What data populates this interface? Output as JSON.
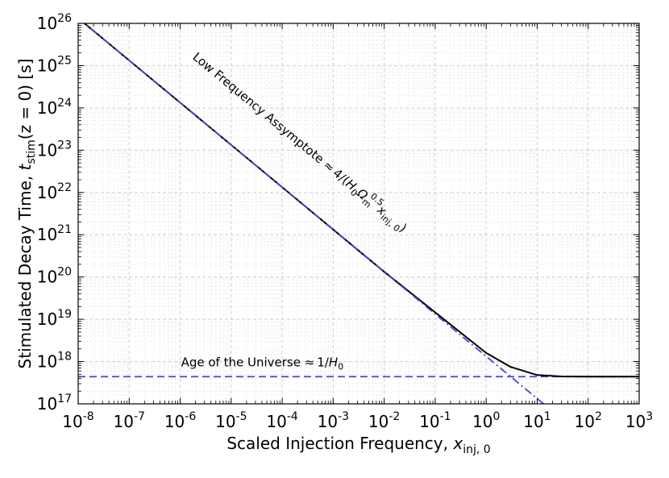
{
  "chart_data": {
    "type": "line",
    "scale": {
      "x": "log",
      "y": "log"
    },
    "xlim": [
      1e-08,
      1000
    ],
    "ylim": [
      1e+17,
      1e+26
    ],
    "grid": true,
    "xlabel_main": "Scaled Injection Frequency, ",
    "xlabel_var": "x",
    "xlabel_sub": "inj, 0",
    "ylabel_main": "Stimulated Decay Time, ",
    "ylabel_var": "t",
    "ylabel_sub": "stim",
    "ylabel_tail": "(z = 0) [s]",
    "x_ticks": [
      {
        "base": "10",
        "exp": "-8",
        "value": 1e-08
      },
      {
        "base": "10",
        "exp": "-7",
        "value": 1e-07
      },
      {
        "base": "10",
        "exp": "-6",
        "value": 1e-06
      },
      {
        "base": "10",
        "exp": "-5",
        "value": 1e-05
      },
      {
        "base": "10",
        "exp": "-4",
        "value": 0.0001
      },
      {
        "base": "10",
        "exp": "-3",
        "value": 0.001
      },
      {
        "base": "10",
        "exp": "-2",
        "value": 0.01
      },
      {
        "base": "10",
        "exp": "-1",
        "value": 0.1
      },
      {
        "base": "10",
        "exp": "0",
        "value": 1
      },
      {
        "base": "10",
        "exp": "1",
        "value": 10
      },
      {
        "base": "10",
        "exp": "2",
        "value": 100
      },
      {
        "base": "10",
        "exp": "3",
        "value": 1000
      }
    ],
    "y_ticks": [
      {
        "base": "10",
        "exp": "17",
        "value": 1e+17
      },
      {
        "base": "10",
        "exp": "18",
        "value": 1e+18
      },
      {
        "base": "10",
        "exp": "19",
        "value": 1e+19
      },
      {
        "base": "10",
        "exp": "20",
        "value": 1e+20
      },
      {
        "base": "10",
        "exp": "21",
        "value": 1e+21
      },
      {
        "base": "10",
        "exp": "22",
        "value": 1e+22
      },
      {
        "base": "10",
        "exp": "23",
        "value": 1e+23
      },
      {
        "base": "10",
        "exp": "24",
        "value": 1e+24
      },
      {
        "base": "10",
        "exp": "25",
        "value": 1e+25
      },
      {
        "base": "10",
        "exp": "26",
        "value": 1e+26
      }
    ],
    "series": [
      {
        "name": "Stimulated decay time",
        "style": "solid",
        "color": "#000000",
        "points": [
          [
            1e-08,
            1.33e+26
          ],
          [
            1e-06,
            1.33e+24
          ],
          [
            0.0001,
            1.33e+22
          ],
          [
            0.01,
            1.33e+20
          ],
          [
            1,
            1.6e+18
          ],
          [
            3,
            7.5e+17
          ],
          [
            10,
            4.8e+17
          ],
          [
            30,
            4.45e+17
          ],
          [
            100,
            4.4e+17
          ],
          [
            1000,
            4.4e+17
          ]
        ]
      },
      {
        "name": "Low Frequency Assymptote",
        "style": "dashdot",
        "color": "#4444dd",
        "points": [
          [
            1e-08,
            1.33e+26
          ],
          [
            100,
            1.33e+16
          ]
        ]
      },
      {
        "name": "Age of the Universe",
        "style": "dashed",
        "color": "#4444dd",
        "points": [
          [
            1e-08,
            4.4e+17
          ],
          [
            1000,
            4.4e+17
          ]
        ]
      }
    ],
    "annotations": {
      "asymptote": {
        "text": "Low Frequency Assymptote ",
        "approx": "≈",
        "formula_start": "4/(",
        "H": "H",
        "H_sub": "0",
        "Omega": "Ω",
        "Omega_sub": "m",
        "Omega_sup": "0.5",
        "x": "x",
        "x_sub": "inj, 0",
        "close": ")",
        "anchor_point": [
          1e-05,
          1.2e+24
        ]
      },
      "age": {
        "text": "Age of the Universe ",
        "approx": "≈",
        "formula": "1/",
        "H": "H",
        "H_sub": "0",
        "anchor_point": [
          2e-06,
          8e+17
        ]
      }
    }
  }
}
